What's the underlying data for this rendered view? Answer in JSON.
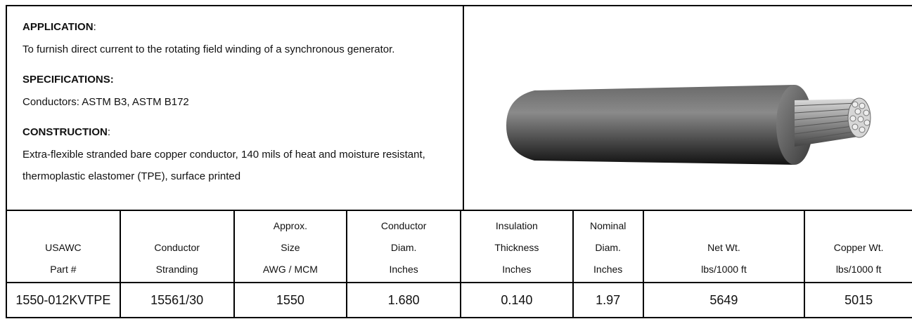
{
  "description": {
    "sections": [
      {
        "heading": "APPLICATION",
        "heading_suffix": ":",
        "text": "To furnish direct current to the rotating field winding of a synchronous generator."
      },
      {
        "heading": "SPECIFICATIONS:",
        "text": "Conductors:  ASTM B3, ASTM B172"
      },
      {
        "heading": "CONSTRUCTION",
        "heading_suffix": ":",
        "text": "Extra-flexible stranded bare copper conductor, 140 mils of heat and moisture resistant, thermoplastic elastomer (TPE), surface printed"
      }
    ]
  },
  "table": {
    "header": [
      [
        "USAWC",
        "Part #"
      ],
      [
        "Conductor",
        "Stranding"
      ],
      [
        "Approx.",
        "Size",
        "AWG / MCM"
      ],
      [
        "Conductor",
        "Diam.",
        "Inches"
      ],
      [
        "Insulation",
        "Thickness",
        "Inches"
      ],
      [
        "Nominal",
        "Diam.",
        "Inches"
      ],
      [
        "Net Wt.",
        "lbs/1000 ft"
      ],
      [
        "Copper Wt.",
        "lbs/1000 ft"
      ]
    ],
    "rows": [
      [
        "1550-012KVTPE",
        "15561/30",
        "1550",
        "1.680",
        "0.140",
        "1.97",
        "5649",
        "5015"
      ]
    ]
  }
}
